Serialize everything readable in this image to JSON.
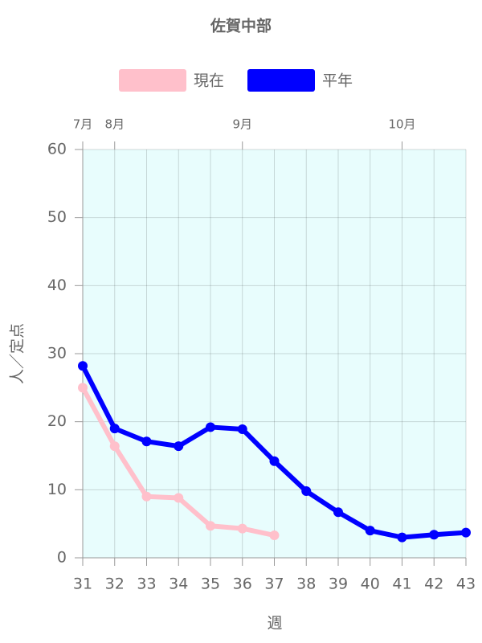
{
  "chart_data": {
    "type": "line",
    "title": "佐賀中部",
    "x": [
      31,
      32,
      33,
      34,
      35,
      36,
      37,
      38,
      39,
      40,
      41,
      42,
      43
    ],
    "series": [
      {
        "name": "現在",
        "color": "#ffc0cb",
        "values": [
          25.0,
          16.4,
          9.0,
          8.8,
          4.7,
          4.3,
          3.3,
          null,
          null,
          null,
          null,
          null,
          null
        ]
      },
      {
        "name": "平年",
        "color": "#0000ff",
        "values": [
          28.2,
          19.0,
          17.1,
          16.4,
          19.2,
          18.9,
          14.2,
          9.8,
          6.7,
          4.0,
          3.0,
          3.4,
          3.7
        ]
      }
    ],
    "xlim": [
      31,
      43
    ],
    "xticks": [
      31,
      32,
      33,
      34,
      35,
      36,
      37,
      38,
      39,
      40,
      41,
      42,
      43
    ],
    "ylim": [
      0,
      60
    ],
    "yticks": [
      0,
      10,
      20,
      30,
      40,
      50,
      60
    ],
    "x_label": "週",
    "y_label": "人／定点",
    "top_labels": [
      {
        "value": 31,
        "label": "7月"
      },
      {
        "value": 32,
        "label": "8月"
      },
      {
        "value": 36,
        "label": "9月"
      },
      {
        "value": 41,
        "label": "10月"
      }
    ],
    "plot_background": "#e8fdfd",
    "grid": true
  }
}
